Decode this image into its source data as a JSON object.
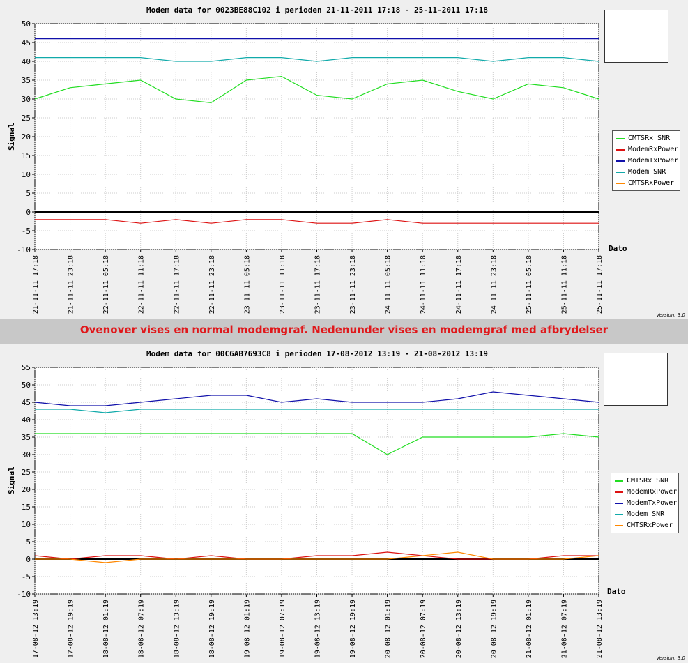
{
  "caption": "Ovenover vises en normal modemgraf. Nedenunder vises en modemgraf med afbrydelser",
  "legend": [
    {
      "name": "CMTSRx SNR",
      "color": "#22dd22"
    },
    {
      "name": "ModemRxPower",
      "color": "#dd1111"
    },
    {
      "name": "ModemTxPower",
      "color": "#1111aa"
    },
    {
      "name": "Modem SNR",
      "color": "#11aaaa"
    },
    {
      "name": "CMTSRxPower",
      "color": "#ff8800"
    }
  ],
  "chart_data": [
    {
      "type": "line",
      "title": "Modem data for 0023BE88C102 i perioden 21-11-2011 17:18 - 25-11-2011 17:18",
      "ylabel": "Signal",
      "xlabel": "Dato",
      "version": "Version: 3.0",
      "ylim": [
        -10,
        50
      ],
      "yticks": [
        -10,
        -5,
        0,
        5,
        10,
        15,
        20,
        25,
        30,
        35,
        40,
        45,
        50
      ],
      "xticks": [
        "21-11-11 17:18",
        "21-11-11 23:18",
        "22-11-11 05:18",
        "22-11-11 11:18",
        "22-11-11 17:18",
        "22-11-11 23:18",
        "23-11-11 05:18",
        "23-11-11 11:18",
        "23-11-11 17:18",
        "23-11-11 23:18",
        "24-11-11 05:18",
        "24-11-11 11:18",
        "24-11-11 17:18",
        "24-11-11 23:18",
        "25-11-11 05:18",
        "25-11-11 11:18",
        "25-11-11 17:18"
      ],
      "grid": true,
      "legend_position": "right",
      "series": [
        {
          "name": "ModemTxPower",
          "values": [
            46,
            46,
            46,
            46,
            46,
            46,
            46,
            46,
            46,
            46,
            46,
            46,
            46,
            46,
            46,
            46,
            46
          ]
        },
        {
          "name": "Modem SNR",
          "values": [
            41,
            41,
            41,
            41,
            40,
            40,
            41,
            41,
            40,
            41,
            41,
            41,
            41,
            40,
            41,
            41,
            40
          ]
        },
        {
          "name": "CMTSRx SNR",
          "values": [
            30,
            33,
            34,
            35,
            30,
            29,
            35,
            36,
            31,
            30,
            34,
            35,
            32,
            30,
            34,
            33,
            30
          ]
        },
        {
          "name": "ModemRxPower",
          "values": [
            -2,
            -2,
            -2,
            -3,
            -2,
            -3,
            -2,
            -2,
            -3,
            -3,
            -2,
            -3,
            -3,
            -3,
            -3,
            -3,
            -3
          ]
        }
      ]
    },
    {
      "type": "line",
      "title": "Modem data for 00C6AB7693C8 i perioden 17-08-2012 13:19 - 21-08-2012 13:19",
      "ylabel": "Signal",
      "xlabel": "Dato",
      "version": "Version: 3.0",
      "ylim": [
        -10,
        55
      ],
      "yticks": [
        -10,
        -5,
        0,
        5,
        10,
        15,
        20,
        25,
        30,
        35,
        40,
        45,
        50,
        55
      ],
      "xticks": [
        "17-08-12 13:19",
        "17-08-12 19:19",
        "18-08-12 01:19",
        "18-08-12 07:19",
        "18-08-12 13:19",
        "18-08-12 19:19",
        "19-08-12 01:19",
        "19-08-12 07:19",
        "19-08-12 13:19",
        "19-08-12 19:19",
        "20-08-12 01:19",
        "20-08-12 07:19",
        "20-08-12 13:19",
        "20-08-12 19:19",
        "21-08-12 01:19",
        "21-08-12 07:19",
        "21-08-12 13:19"
      ],
      "grid": true,
      "legend_position": "right",
      "series": [
        {
          "name": "ModemTxPower",
          "values": [
            45,
            44,
            44,
            45,
            46,
            47,
            47,
            45,
            46,
            45,
            45,
            45,
            46,
            48,
            47,
            46,
            45
          ]
        },
        {
          "name": "Modem SNR",
          "values": [
            43,
            43,
            42,
            43,
            43,
            43,
            43,
            43,
            43,
            43,
            43,
            43,
            43,
            43,
            43,
            43,
            43
          ]
        },
        {
          "name": "CMTSRx SNR",
          "values": [
            36,
            36,
            36,
            36,
            36,
            36,
            36,
            36,
            36,
            36,
            30,
            35,
            35,
            35,
            35,
            36,
            35
          ]
        },
        {
          "name": "ModemRxPower",
          "values": [
            1,
            0,
            1,
            1,
            0,
            1,
            0,
            0,
            1,
            1,
            2,
            1,
            0,
            0,
            0,
            1,
            1
          ]
        },
        {
          "name": "CMTSRxPower",
          "values": [
            0,
            0,
            -1,
            0,
            0,
            0,
            0,
            0,
            0,
            0,
            0,
            1,
            2,
            0,
            0,
            0,
            1
          ]
        }
      ]
    }
  ]
}
